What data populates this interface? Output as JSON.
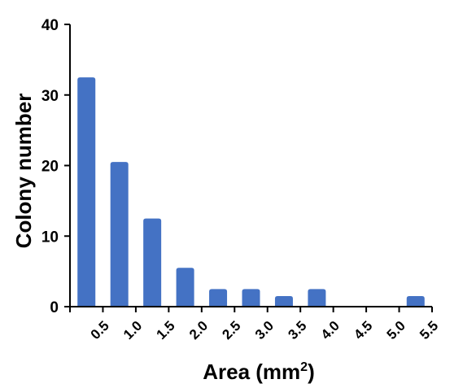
{
  "chart_data": {
    "type": "bar",
    "title": "",
    "xlabel": "Area (mm",
    "xlabel_superscript": "2",
    "xlabel_close": ")",
    "ylabel": "Colony number",
    "categories": [
      "0.5",
      "1.0",
      "1.5",
      "2.0",
      "2.5",
      "3.0",
      "3.5",
      "4.0",
      "4.5",
      "5.0",
      "5.5"
    ],
    "values": [
      32.5,
      20.5,
      12.5,
      5.5,
      2.5,
      2.5,
      1.5,
      2.5,
      0,
      0,
      1.5
    ],
    "yticks": [
      "0",
      "10",
      "20",
      "30",
      "40"
    ],
    "ylim": [
      0,
      40
    ],
    "grid": false,
    "bar_color": "#4472C4"
  }
}
